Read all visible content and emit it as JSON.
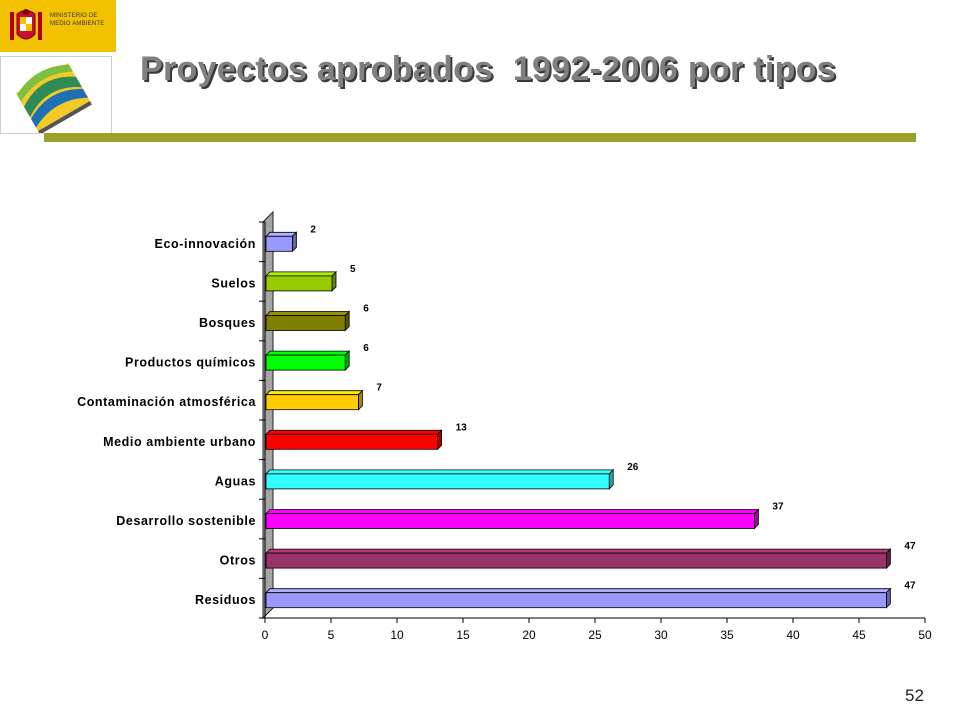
{
  "header": {
    "ministry_text": "MINISTERIO DE MEDIO AMBIENTE",
    "title": "Proyectos aprobados  1992-2006 por tipos",
    "rule_color": "#99a32a",
    "title_color": "#808080"
  },
  "logos": {
    "ministry": "spanish-coat-of-arms-icon",
    "ecolabel": "eco-label-logo-icon"
  },
  "page_number": "52",
  "chart_data": {
    "type": "bar",
    "orientation": "horizontal",
    "title": "",
    "xlabel": "",
    "ylabel": "",
    "xlim": [
      0,
      50
    ],
    "x_ticks": [
      0,
      5,
      10,
      15,
      20,
      25,
      30,
      35,
      40,
      45,
      50
    ],
    "grid": false,
    "legend": "none",
    "categories": [
      "Eco-innovación",
      "Suelos",
      "Bosques",
      "Productos químicos",
      "Contaminación atmosférica",
      "Medio ambiente urbano",
      "Aguas",
      "Desarrollo sostenible",
      "Otros",
      "Residuos"
    ],
    "values": [
      2,
      5,
      6,
      6,
      7,
      13,
      26,
      37,
      47,
      47
    ],
    "colors": [
      "#9999ff",
      "#99cc00",
      "#808000",
      "#00ff00",
      "#ffcc00",
      "#ff0000",
      "#33ffff",
      "#ff00ff",
      "#993366",
      "#9999ff"
    ],
    "data_labels": [
      "2",
      "5",
      "6",
      "6",
      "7",
      "13",
      "26",
      "37",
      "47",
      "47"
    ]
  }
}
